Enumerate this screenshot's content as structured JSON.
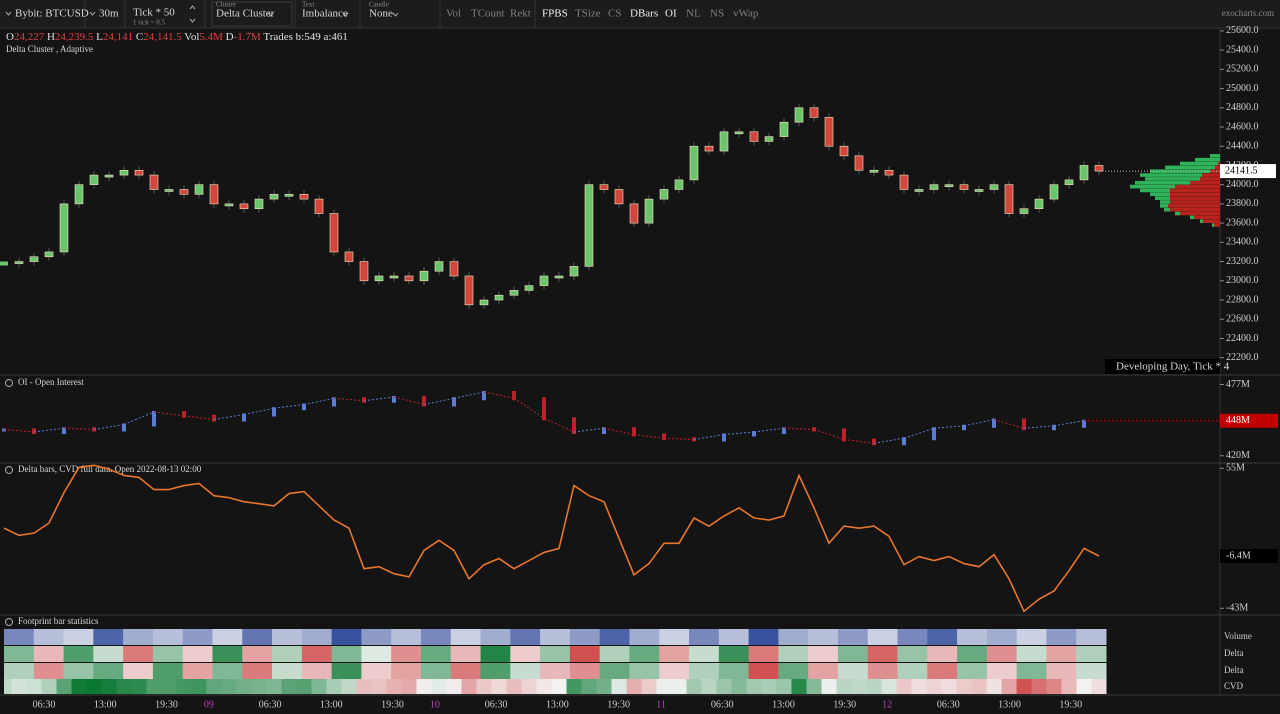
{
  "toolbar": {
    "symbol": "Bybit: BTCUSD",
    "timeframe": "30m",
    "tick": "Tick * 50",
    "tick_sub": "1 tick = 0.5",
    "cluster_label": "Cluster",
    "cluster": "Delta Cluster",
    "text_label": "Text",
    "text": "Imbalance",
    "candle_label": "Candle",
    "candle": "None",
    "toggles": [
      {
        "label": "Vol",
        "active": false
      },
      {
        "label": "TCount",
        "active": false
      },
      {
        "label": "Rekt",
        "active": false
      },
      {
        "label": "FPBS",
        "active": true
      },
      {
        "label": "TSize",
        "active": false
      },
      {
        "label": "CS",
        "active": false
      },
      {
        "label": "DBars",
        "active": true
      },
      {
        "label": "OI",
        "active": true
      },
      {
        "label": "NL",
        "active": false
      },
      {
        "label": "NS",
        "active": false
      },
      {
        "label": "vWap",
        "active": false
      }
    ],
    "site": "exocharts.com"
  },
  "price_panel": {
    "ohlc": [
      {
        "label": "O",
        "value": "24,227"
      },
      {
        "label": "H",
        "value": "24,239.5"
      },
      {
        "label": "L",
        "value": "24,141"
      },
      {
        "label": "C",
        "value": "24,141.5"
      },
      {
        "label": "Vol",
        "value": "5.4M"
      },
      {
        "label": "D",
        "value": "-1.7M"
      }
    ],
    "trades": "Trades b:549 a:461",
    "subtitle": "Delta Cluster , Adaptive",
    "ylim": [
      22020,
      25630
    ],
    "yticks": [
      {
        "value": 22200,
        "label": "22200.0"
      },
      {
        "value": 22400,
        "label": "22400.0"
      },
      {
        "value": 22600,
        "label": "22600.0"
      },
      {
        "value": 22800,
        "label": "22800.0"
      },
      {
        "value": 23000,
        "label": "23000.0"
      },
      {
        "value": 23200,
        "label": "23200.0"
      },
      {
        "value": 23400,
        "label": "23400.0"
      },
      {
        "value": 23600,
        "label": "23600.0"
      },
      {
        "value": 23800,
        "label": "23800.0"
      },
      {
        "value": 24000,
        "label": "24000.0"
      },
      {
        "value": 24200,
        "label": "24200.0"
      },
      {
        "value": 24400,
        "label": "24400.0"
      },
      {
        "value": 24600,
        "label": "24600.0"
      },
      {
        "value": 24800,
        "label": "24800.0"
      },
      {
        "value": 25000,
        "label": "25000.0"
      },
      {
        "value": 25200,
        "label": "25200.0"
      },
      {
        "value": 25400,
        "label": "25400.0"
      },
      {
        "value": 25600,
        "label": "25600.0"
      }
    ],
    "values": [
      23180,
      23200,
      23250,
      23300,
      23800,
      24000,
      24100,
      24100,
      24150,
      24100,
      23950,
      23950,
      23900,
      24000,
      23800,
      23800,
      23750,
      23850,
      23900,
      23900,
      23850,
      23700,
      23300,
      23200,
      23000,
      23050,
      23050,
      23000,
      23100,
      23200,
      23050,
      22750,
      22800,
      22850,
      22900,
      22950,
      23050,
      23050,
      23150,
      24000,
      23950,
      23800,
      23600,
      23850,
      23950,
      24050,
      24400,
      24350,
      24550,
      24550,
      24450,
      24500,
      24650,
      24800,
      24700,
      24400,
      24300,
      24150,
      24150,
      24100,
      23950,
      23950,
      24000,
      24000,
      23950,
      23950,
      24000,
      23700,
      23750,
      23850,
      24000,
      24050,
      24200,
      24141.5
    ],
    "up_color": "#6cc46c",
    "down_color": "#d2463c",
    "last_price": 24141.5,
    "footer": "Developing Day, Tick * 4",
    "volume_profile": {
      "prices": [
        24300,
        24260,
        24220,
        24180,
        24140,
        24100,
        24060,
        24020,
        23980,
        23940,
        23900,
        23860,
        23820,
        23780,
        23740,
        23700,
        23660,
        23620,
        23580
      ],
      "buy": [
        10,
        25,
        38,
        50,
        60,
        62,
        55,
        55,
        45,
        30,
        20,
        15,
        10,
        8,
        6,
        5,
        4,
        3,
        2
      ],
      "sell": [
        0,
        0,
        2,
        5,
        10,
        18,
        20,
        30,
        45,
        50,
        50,
        50,
        50,
        52,
        50,
        40,
        26,
        17,
        6
      ],
      "buy_color": "#2fb35a",
      "sell_color": "#b8231e"
    }
  },
  "oi_panel": {
    "title": "OI - Open Interest",
    "ylim": [
      415,
      483
    ],
    "yticks": [
      {
        "value": 477,
        "label": "477M"
      },
      {
        "value": 420,
        "label": "420M"
      }
    ],
    "current": {
      "value": 448,
      "label": "448M"
    },
    "values": [
      441,
      439,
      442,
      441,
      445,
      455,
      452,
      449,
      453,
      458,
      461,
      466,
      464,
      467,
      461,
      466,
      471,
      466,
      450,
      439,
      442,
      437,
      434,
      433,
      437,
      439,
      442,
      441,
      433,
      430,
      434,
      442,
      444,
      449,
      442,
      444,
      448
    ],
    "up_color": "#5b7bd5",
    "down_color": "#c0202a"
  },
  "cvd_panel": {
    "title": "Delta bars, CVD full data. Open 2022-08-13 02:00",
    "ylim": [
      -47,
      58
    ],
    "yticks": [
      {
        "value": 55,
        "label": "55M"
      },
      {
        "value": -6.4,
        "label": "-6.4M"
      },
      {
        "value": -43,
        "label": "-43M"
      }
    ],
    "values": [
      13.1,
      8.1,
      9.6,
      16.7,
      38,
      55.7,
      57.1,
      54.3,
      50,
      48.6,
      40.1,
      40.1,
      42.9,
      44.4,
      35.8,
      34.4,
      31.6,
      30.2,
      28.7,
      37.3,
      38.7,
      28.7,
      18.8,
      13.1,
      -15.3,
      -13.9,
      -18.8,
      -21,
      -2.5,
      4.6,
      -2.5,
      -22.4,
      -12.5,
      -8.2,
      -15.3,
      -9.6,
      -3.9,
      -1.1,
      42.9,
      35.8,
      31.6,
      6,
      -19.6,
      -11.7,
      2.5,
      2.5,
      20.2,
      14.5,
      21.6,
      27.3,
      20.2,
      18.8,
      21.6,
      50,
      27.3,
      2.5,
      14.5,
      13.1,
      14.5,
      7.4,
      -12.5,
      -6.8,
      -9.6,
      -6.8,
      -11.7,
      -13.9,
      -5.4,
      -22.4,
      -45.1,
      -36.6,
      -30.9,
      -16.7,
      -1.1,
      -6.4
    ],
    "color": "#e8762c"
  },
  "stats_panel": {
    "title": "Footprint bar statistics",
    "row_labels": [
      "Volume",
      "Delta",
      "Delta",
      "CVD"
    ],
    "volume": [
      0.6,
      0.3,
      0.2,
      0.8,
      0.4,
      0.3,
      0.5,
      0.2,
      0.7,
      0.3,
      0.4,
      0.9,
      0.5,
      0.3,
      0.6,
      0.2,
      0.4,
      0.7,
      0.3,
      0.5,
      0.8,
      0.4,
      0.2,
      0.6,
      0.3,
      0.9,
      0.4,
      0.3,
      0.5,
      0.2,
      0.6,
      0.8,
      0.3,
      0.4,
      0.2,
      0.5,
      0.3
    ],
    "delta_1": [
      0.5,
      -0.3,
      0.7,
      0.2,
      -0.6,
      0.4,
      -0.2,
      0.8,
      -0.4,
      0.3,
      -0.7,
      0.5,
      0.1,
      -0.5,
      0.6,
      -0.3,
      0.9,
      -0.2,
      0.4,
      -0.8,
      0.3,
      0.6,
      -0.4,
      0.2,
      0.8,
      -0.6,
      0.3,
      -0.2,
      0.5,
      -0.7,
      0.4,
      -0.3,
      0.6,
      -0.5,
      0.2,
      -0.4,
      0.3
    ],
    "delta_2": [
      0.3,
      -0.5,
      0.4,
      0.6,
      -0.2,
      0.7,
      -0.4,
      0.5,
      -0.6,
      0.2,
      -0.3,
      0.8,
      -0.2,
      -0.4,
      0.5,
      -0.6,
      0.7,
      0.2,
      -0.3,
      -0.5,
      0.6,
      0.4,
      -0.2,
      0.3,
      0.5,
      -0.8,
      0.6,
      -0.4,
      0.2,
      -0.5,
      0.3,
      -0.6,
      0.4,
      -0.2,
      0.5,
      -0.3,
      0.2
    ]
  },
  "x_axis": {
    "labels": [
      "06:30",
      "13:00",
      "19:30",
      "09",
      "06:30",
      "13:00",
      "19:30",
      "10",
      "06:30",
      "13:00",
      "19:30",
      "11",
      "06:30",
      "13:00",
      "19:30",
      "12",
      "06:30",
      "13:00",
      "19:30"
    ]
  }
}
